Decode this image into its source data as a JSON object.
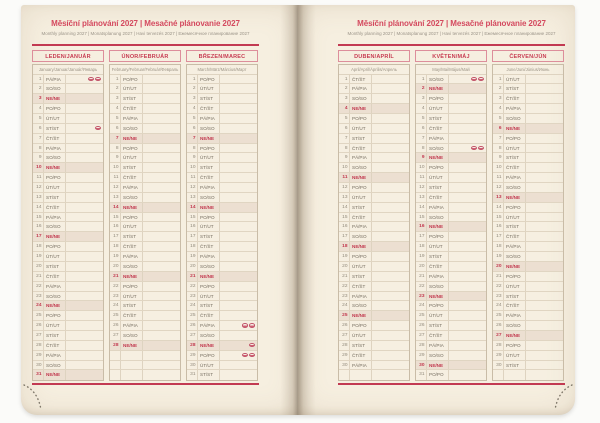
{
  "header": {
    "title": "Měsíční plánování 2027 | Mesačné plánovanie 2027",
    "subtitle": "Monthly planning 2027 | Monatsplanung 2027 | Havi tervezés 2027 | Ежемесячное планирование 2027"
  },
  "legend": {
    "sunday_abbr": "NE/NE",
    "holiday_icon": "oval-flag-marker",
    "day_entry_format": "[day_number, weekday_abbr_cz_sk, holiday_flag_count]"
  },
  "colors": {
    "accent_red": "#c23a52",
    "title_pink": "#d4495e",
    "sunday_bg": "#ecdfd1",
    "paper_cream": "#f6efe0"
  },
  "months": [
    {
      "name": "LEDEN/JANUÁR",
      "subtitle": "January/Januar/Január/Январь",
      "days": [
        [
          1,
          "PÁ/PIA",
          2
        ],
        [
          2,
          "SO/SO",
          0
        ],
        [
          3,
          "NE/NE",
          0
        ],
        [
          4,
          "PO/PO",
          0
        ],
        [
          5,
          "ÚT/UT",
          0
        ],
        [
          6,
          "ST/ST",
          1
        ],
        [
          7,
          "ČT/ŠT",
          0
        ],
        [
          8,
          "PÁ/PIA",
          0
        ],
        [
          9,
          "SO/SO",
          0
        ],
        [
          10,
          "NE/NE",
          0
        ],
        [
          11,
          "PO/PO",
          0
        ],
        [
          12,
          "ÚT/UT",
          0
        ],
        [
          13,
          "ST/ST",
          0
        ],
        [
          14,
          "ČT/ŠT",
          0
        ],
        [
          15,
          "PÁ/PIA",
          0
        ],
        [
          16,
          "SO/SO",
          0
        ],
        [
          17,
          "NE/NE",
          0
        ],
        [
          18,
          "PO/PO",
          0
        ],
        [
          19,
          "ÚT/UT",
          0
        ],
        [
          20,
          "ST/ST",
          0
        ],
        [
          21,
          "ČT/ŠT",
          0
        ],
        [
          22,
          "PÁ/PIA",
          0
        ],
        [
          23,
          "SO/SO",
          0
        ],
        [
          24,
          "NE/NE",
          0
        ],
        [
          25,
          "PO/PO",
          0
        ],
        [
          26,
          "ÚT/UT",
          0
        ],
        [
          27,
          "ST/ST",
          0
        ],
        [
          28,
          "ČT/ŠT",
          0
        ],
        [
          29,
          "PÁ/PIA",
          0
        ],
        [
          30,
          "SO/SO",
          0
        ],
        [
          31,
          "NE/NE",
          0
        ]
      ]
    },
    {
      "name": "ÚNOR/FEBRUÁR",
      "subtitle": "February/Februar/Február/Февраль",
      "days": [
        [
          1,
          "PO/PO",
          0
        ],
        [
          2,
          "ÚT/UT",
          0
        ],
        [
          3,
          "ST/ST",
          0
        ],
        [
          4,
          "ČT/ŠT",
          0
        ],
        [
          5,
          "PÁ/PIA",
          0
        ],
        [
          6,
          "SO/SO",
          0
        ],
        [
          7,
          "NE/NE",
          0
        ],
        [
          8,
          "PO/PO",
          0
        ],
        [
          9,
          "ÚT/UT",
          0
        ],
        [
          10,
          "ST/ST",
          0
        ],
        [
          11,
          "ČT/ŠT",
          0
        ],
        [
          12,
          "PÁ/PIA",
          0
        ],
        [
          13,
          "SO/SO",
          0
        ],
        [
          14,
          "NE/NE",
          0
        ],
        [
          15,
          "PO/PO",
          0
        ],
        [
          16,
          "ÚT/UT",
          0
        ],
        [
          17,
          "ST/ST",
          0
        ],
        [
          18,
          "ČT/ŠT",
          0
        ],
        [
          19,
          "PÁ/PIA",
          0
        ],
        [
          20,
          "SO/SO",
          0
        ],
        [
          21,
          "NE/NE",
          0
        ],
        [
          22,
          "PO/PO",
          0
        ],
        [
          23,
          "ÚT/UT",
          0
        ],
        [
          24,
          "ST/ST",
          0
        ],
        [
          25,
          "ČT/ŠT",
          0
        ],
        [
          26,
          "PÁ/PIA",
          0
        ],
        [
          27,
          "SO/SO",
          0
        ],
        [
          28,
          "NE/NE",
          0
        ]
      ]
    },
    {
      "name": "BŘEZEN/MAREC",
      "subtitle": "March/März/Március/Март",
      "days": [
        [
          1,
          "PO/PO",
          0
        ],
        [
          2,
          "ÚT/UT",
          0
        ],
        [
          3,
          "ST/ST",
          0
        ],
        [
          4,
          "ČT/ŠT",
          0
        ],
        [
          5,
          "PÁ/PIA",
          0
        ],
        [
          6,
          "SO/SO",
          0
        ],
        [
          7,
          "NE/NE",
          0
        ],
        [
          8,
          "PO/PO",
          0
        ],
        [
          9,
          "ÚT/UT",
          0
        ],
        [
          10,
          "ST/ST",
          0
        ],
        [
          11,
          "ČT/ŠT",
          0
        ],
        [
          12,
          "PÁ/PIA",
          0
        ],
        [
          13,
          "SO/SO",
          0
        ],
        [
          14,
          "NE/NE",
          0
        ],
        [
          15,
          "PO/PO",
          0
        ],
        [
          16,
          "ÚT/UT",
          0
        ],
        [
          17,
          "ST/ST",
          0
        ],
        [
          18,
          "ČT/ŠT",
          0
        ],
        [
          19,
          "PÁ/PIA",
          0
        ],
        [
          20,
          "SO/SO",
          0
        ],
        [
          21,
          "NE/NE",
          0
        ],
        [
          22,
          "PO/PO",
          0
        ],
        [
          23,
          "ÚT/UT",
          0
        ],
        [
          24,
          "ST/ST",
          0
        ],
        [
          25,
          "ČT/ŠT",
          0
        ],
        [
          26,
          "PÁ/PIA",
          2
        ],
        [
          27,
          "SO/SO",
          0
        ],
        [
          28,
          "NE/NE",
          1
        ],
        [
          29,
          "PO/PO",
          2
        ],
        [
          30,
          "ÚT/UT",
          0
        ],
        [
          31,
          "ST/ST",
          0
        ]
      ]
    },
    {
      "name": "DUBEN/APRÍL",
      "subtitle": "April/April/Április/Апрель",
      "days": [
        [
          1,
          "ČT/ŠT",
          0
        ],
        [
          2,
          "PÁ/PIA",
          0
        ],
        [
          3,
          "SO/SO",
          0
        ],
        [
          4,
          "NE/NE",
          0
        ],
        [
          5,
          "PO/PO",
          0
        ],
        [
          6,
          "ÚT/UT",
          0
        ],
        [
          7,
          "ST/ST",
          0
        ],
        [
          8,
          "ČT/ŠT",
          0
        ],
        [
          9,
          "PÁ/PIA",
          0
        ],
        [
          10,
          "SO/SO",
          0
        ],
        [
          11,
          "NE/NE",
          0
        ],
        [
          12,
          "PO/PO",
          0
        ],
        [
          13,
          "ÚT/UT",
          0
        ],
        [
          14,
          "ST/ST",
          0
        ],
        [
          15,
          "ČT/ŠT",
          0
        ],
        [
          16,
          "PÁ/PIA",
          0
        ],
        [
          17,
          "SO/SO",
          0
        ],
        [
          18,
          "NE/NE",
          0
        ],
        [
          19,
          "PO/PO",
          0
        ],
        [
          20,
          "ÚT/UT",
          0
        ],
        [
          21,
          "ST/ST",
          0
        ],
        [
          22,
          "ČT/ŠT",
          0
        ],
        [
          23,
          "PÁ/PIA",
          0
        ],
        [
          24,
          "SO/SO",
          0
        ],
        [
          25,
          "NE/NE",
          0
        ],
        [
          26,
          "PO/PO",
          0
        ],
        [
          27,
          "ÚT/UT",
          0
        ],
        [
          28,
          "ST/ST",
          0
        ],
        [
          29,
          "ČT/ŠT",
          0
        ],
        [
          30,
          "PÁ/PIA",
          0
        ]
      ]
    },
    {
      "name": "KVĚTEN/MÁJ",
      "subtitle": "May/Mai/Május/Май",
      "days": [
        [
          1,
          "SO/SO",
          2
        ],
        [
          2,
          "NE/NE",
          0
        ],
        [
          3,
          "PO/PO",
          0
        ],
        [
          4,
          "ÚT/UT",
          0
        ],
        [
          5,
          "ST/ST",
          0
        ],
        [
          6,
          "ČT/ŠT",
          0
        ],
        [
          7,
          "PÁ/PIA",
          0
        ],
        [
          8,
          "SO/SO",
          2
        ],
        [
          9,
          "NE/NE",
          0
        ],
        [
          10,
          "PO/PO",
          0
        ],
        [
          11,
          "ÚT/UT",
          0
        ],
        [
          12,
          "ST/ST",
          0
        ],
        [
          13,
          "ČT/ŠT",
          0
        ],
        [
          14,
          "PÁ/PIA",
          0
        ],
        [
          15,
          "SO/SO",
          0
        ],
        [
          16,
          "NE/NE",
          0
        ],
        [
          17,
          "PO/PO",
          0
        ],
        [
          18,
          "ÚT/UT",
          0
        ],
        [
          19,
          "ST/ST",
          0
        ],
        [
          20,
          "ČT/ŠT",
          0
        ],
        [
          21,
          "PÁ/PIA",
          0
        ],
        [
          22,
          "SO/SO",
          0
        ],
        [
          23,
          "NE/NE",
          0
        ],
        [
          24,
          "PO/PO",
          0
        ],
        [
          25,
          "ÚT/UT",
          0
        ],
        [
          26,
          "ST/ST",
          0
        ],
        [
          27,
          "ČT/ŠT",
          0
        ],
        [
          28,
          "PÁ/PIA",
          0
        ],
        [
          29,
          "SO/SO",
          0
        ],
        [
          30,
          "NE/NE",
          0
        ],
        [
          31,
          "PO/PO",
          0
        ]
      ]
    },
    {
      "name": "ČERVEN/JÚN",
      "subtitle": "June/Juni/Június/Июнь",
      "days": [
        [
          1,
          "ÚT/UT",
          0
        ],
        [
          2,
          "ST/ST",
          0
        ],
        [
          3,
          "ČT/ŠT",
          0
        ],
        [
          4,
          "PÁ/PIA",
          0
        ],
        [
          5,
          "SO/SO",
          0
        ],
        [
          6,
          "NE/NE",
          0
        ],
        [
          7,
          "PO/PO",
          0
        ],
        [
          8,
          "ÚT/UT",
          0
        ],
        [
          9,
          "ST/ST",
          0
        ],
        [
          10,
          "ČT/ŠT",
          0
        ],
        [
          11,
          "PÁ/PIA",
          0
        ],
        [
          12,
          "SO/SO",
          0
        ],
        [
          13,
          "NE/NE",
          0
        ],
        [
          14,
          "PO/PO",
          0
        ],
        [
          15,
          "ÚT/UT",
          0
        ],
        [
          16,
          "ST/ST",
          0
        ],
        [
          17,
          "ČT/ŠT",
          0
        ],
        [
          18,
          "PÁ/PIA",
          0
        ],
        [
          19,
          "SO/SO",
          0
        ],
        [
          20,
          "NE/NE",
          0
        ],
        [
          21,
          "PO/PO",
          0
        ],
        [
          22,
          "ÚT/UT",
          0
        ],
        [
          23,
          "ST/ST",
          0
        ],
        [
          24,
          "ČT/ŠT",
          0
        ],
        [
          25,
          "PÁ/PIA",
          0
        ],
        [
          26,
          "SO/SO",
          0
        ],
        [
          27,
          "NE/NE",
          0
        ],
        [
          28,
          "PO/PO",
          0
        ],
        [
          29,
          "ÚT/UT",
          0
        ],
        [
          30,
          "ST/ST",
          0
        ]
      ]
    }
  ]
}
